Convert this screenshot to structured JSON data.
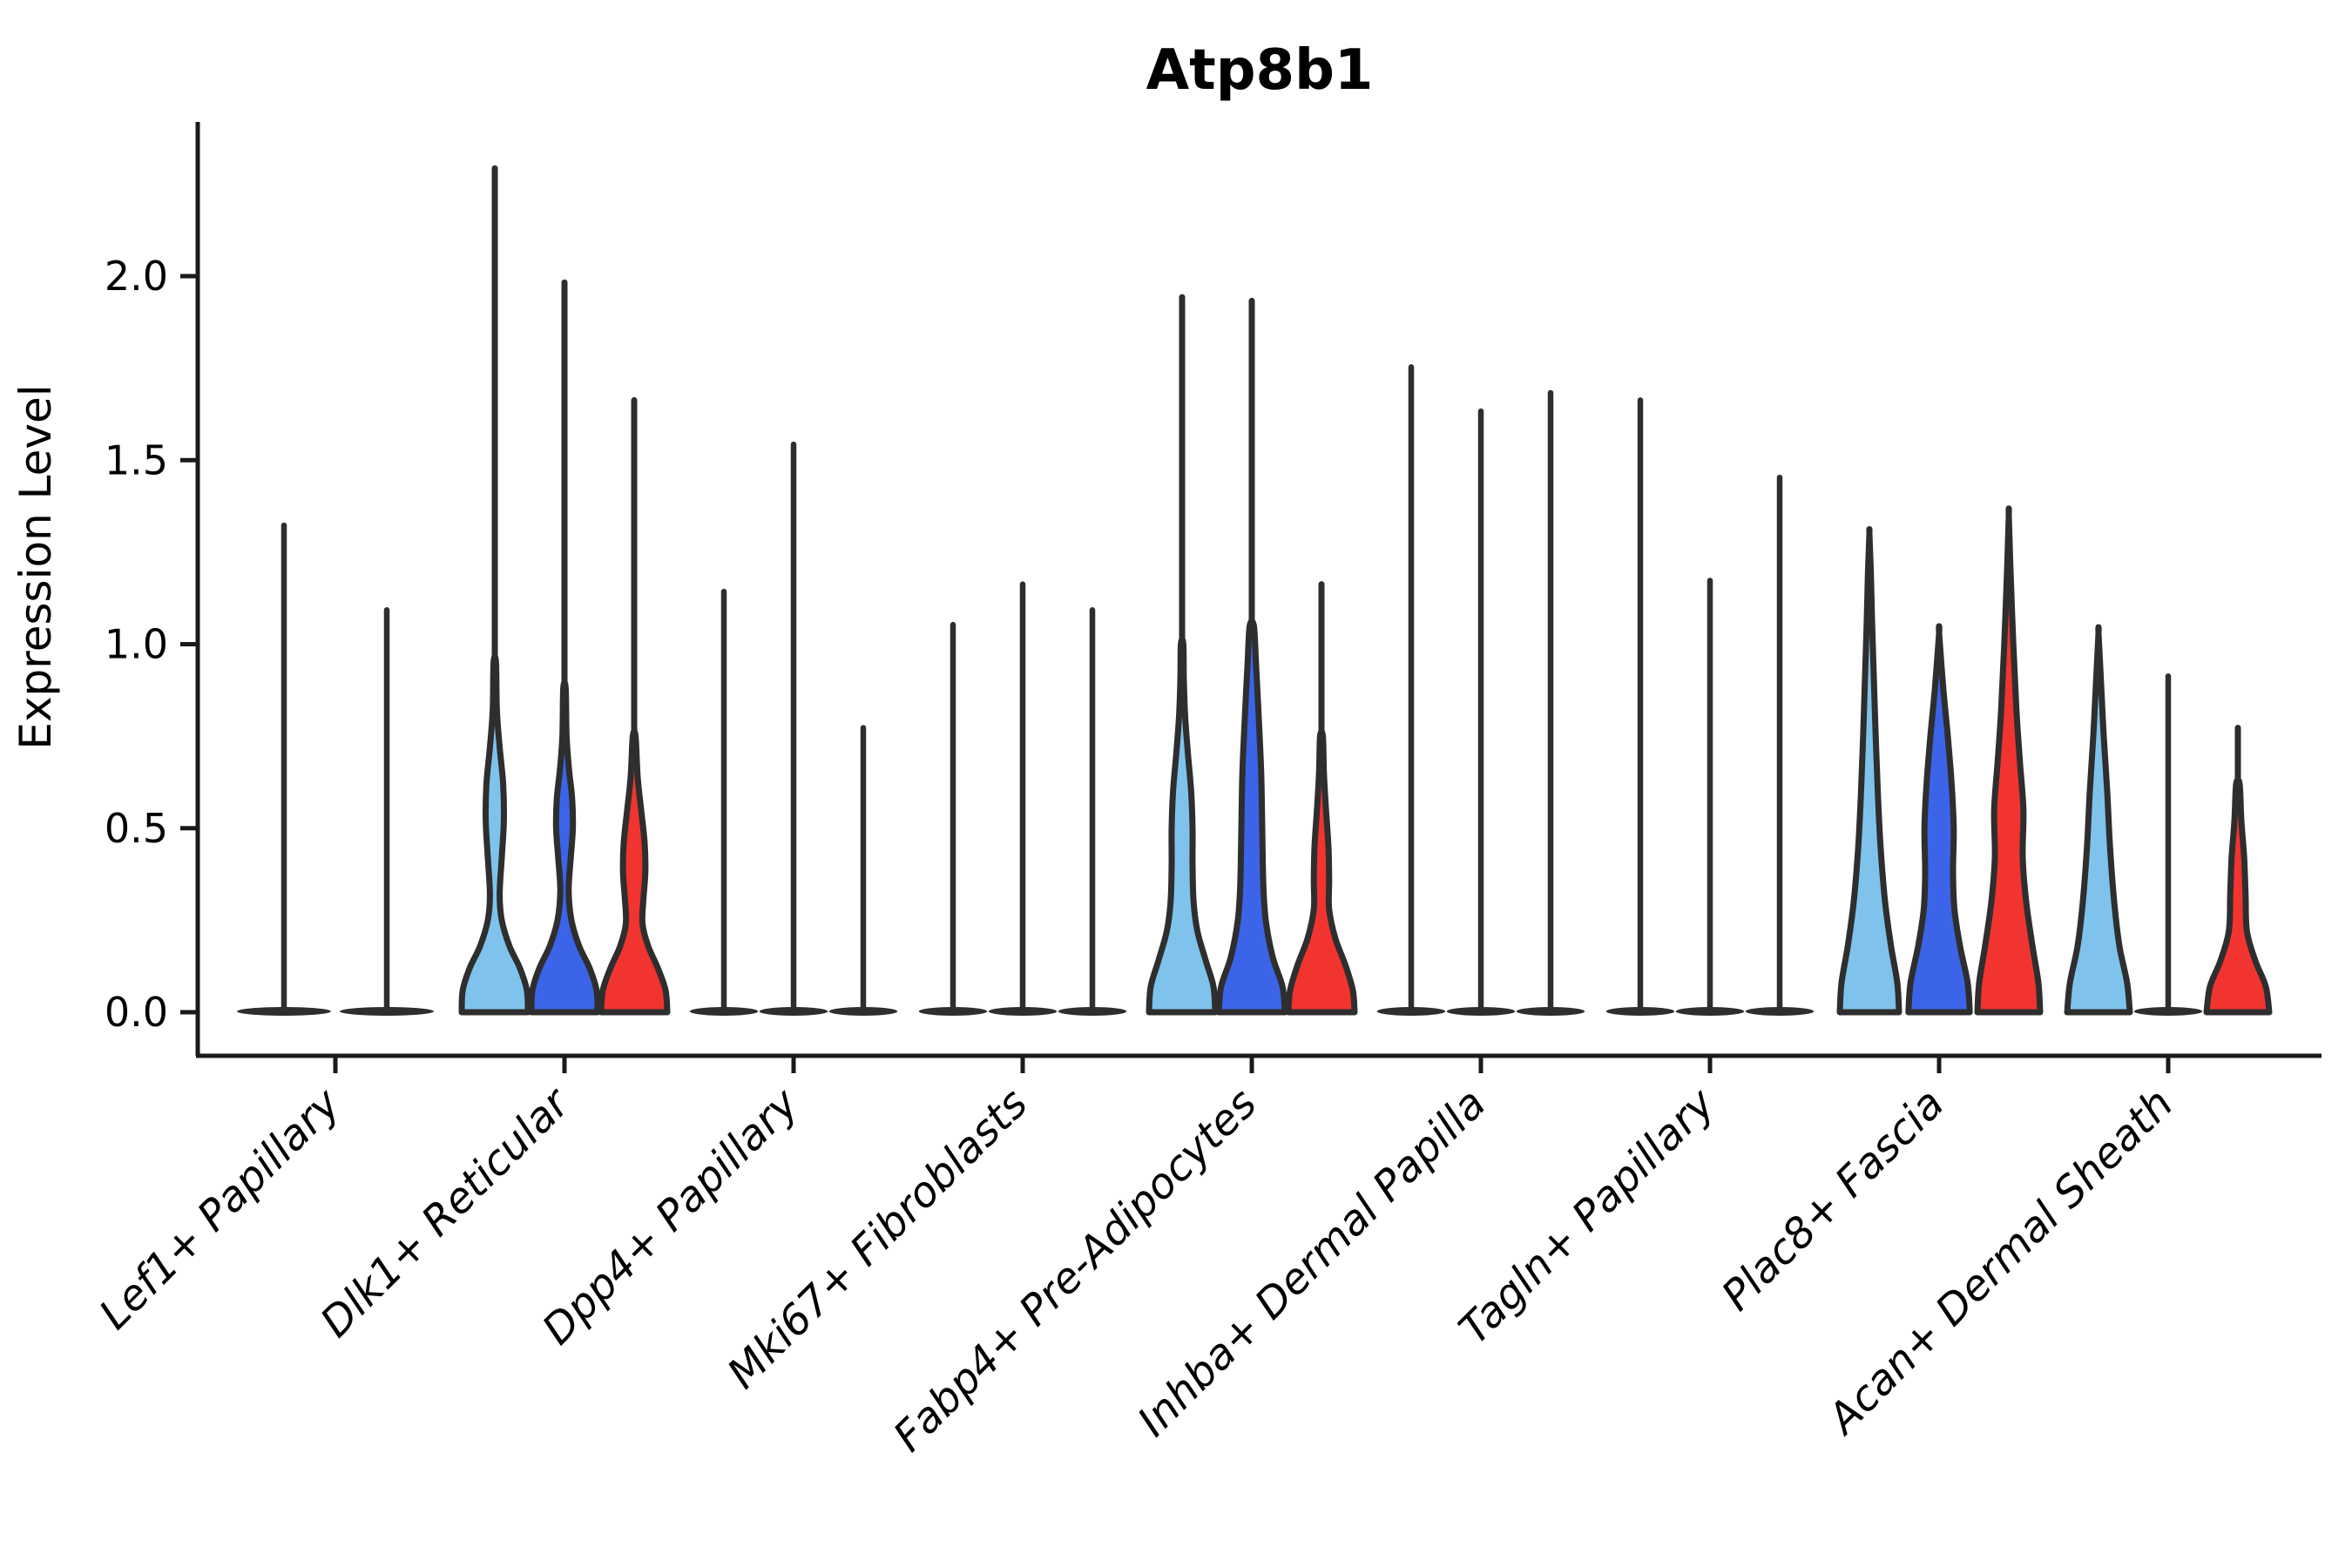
{
  "page": {
    "background": "#ffffff"
  },
  "chart_data": {
    "type": "violin",
    "title": "Atp8b1",
    "ylabel": "Expression Level",
    "xlabel": "",
    "grid": false,
    "legend": "none",
    "ylim": [
      -0.06,
      2.42
    ],
    "ytick_labels": [
      "0.0",
      "0.5",
      "1.0",
      "1.5",
      "2.0"
    ],
    "ytick_values": [
      0.0,
      0.5,
      1.0,
      1.5,
      2.0
    ],
    "palette": {
      "light_blue": "#7FC3EC",
      "dark_blue": "#3B64E8",
      "red": "#F23430",
      "outline": "#2E2E2E",
      "axis": "#1A1A1A"
    },
    "categories": [
      "Lef1+ Papillary",
      "Dlk1+ Reticular",
      "Dpp4+ Papillary",
      "Mki67+ Fibroblasts",
      "Fabp4+ Pre-Adipocytes",
      "Inhba+ Dermal Papilla",
      "Tagln+ Papillary",
      "Plac8+ Fascia",
      "Acan+ Dermal Sheath"
    ],
    "groups": [
      {
        "label": "Lef1+ Papillary",
        "violins": [
          {
            "color": "light_blue",
            "shape": "spike",
            "max": 1.33
          },
          {
            "color": "dark_blue",
            "shape": "spike",
            "max": 1.1
          }
        ]
      },
      {
        "label": "Dlk1+ Reticular",
        "violins": [
          {
            "color": "light_blue",
            "shape": "body_spike",
            "max": 2.3,
            "profile": [
              [
                0,
                0.95
              ],
              [
                0.06,
                0.92
              ],
              [
                0.12,
                0.72
              ],
              [
                0.18,
                0.42
              ],
              [
                0.25,
                0.2
              ],
              [
                0.32,
                0.14
              ],
              [
                0.42,
                0.2
              ],
              [
                0.52,
                0.26
              ],
              [
                0.62,
                0.24
              ],
              [
                0.72,
                0.14
              ],
              [
                0.82,
                0.06
              ],
              [
                0.95,
                0.035
              ]
            ]
          },
          {
            "color": "dark_blue",
            "shape": "body_spike",
            "max": 1.99,
            "profile": [
              [
                0,
                0.95
              ],
              [
                0.06,
                0.92
              ],
              [
                0.12,
                0.72
              ],
              [
                0.18,
                0.42
              ],
              [
                0.25,
                0.2
              ],
              [
                0.33,
                0.12
              ],
              [
                0.42,
                0.18
              ],
              [
                0.5,
                0.24
              ],
              [
                0.58,
                0.22
              ],
              [
                0.66,
                0.13
              ],
              [
                0.75,
                0.06
              ],
              [
                0.88,
                0.035
              ]
            ]
          },
          {
            "color": "red",
            "shape": "body_spike",
            "max": 1.67,
            "profile": [
              [
                0,
                0.95
              ],
              [
                0.06,
                0.9
              ],
              [
                0.12,
                0.68
              ],
              [
                0.18,
                0.4
              ],
              [
                0.24,
                0.24
              ],
              [
                0.3,
                0.26
              ],
              [
                0.38,
                0.32
              ],
              [
                0.46,
                0.3
              ],
              [
                0.55,
                0.2
              ],
              [
                0.64,
                0.1
              ],
              [
                0.75,
                0.04
              ]
            ]
          }
        ]
      },
      {
        "label": "Dpp4+ Papillary",
        "violins": [
          {
            "color": "light_blue",
            "shape": "spike",
            "max": 1.15
          },
          {
            "color": "dark_blue",
            "shape": "spike",
            "max": 1.55
          },
          {
            "color": "red",
            "shape": "spike",
            "max": 0.78
          }
        ]
      },
      {
        "label": "Mki67+ Fibroblasts",
        "violins": [
          {
            "color": "light_blue",
            "shape": "spike",
            "max": 1.06
          },
          {
            "color": "dark_blue",
            "shape": "spike",
            "max": 1.17
          },
          {
            "color": "red",
            "shape": "spike",
            "max": 1.1
          }
        ]
      },
      {
        "label": "Fabp4+ Pre-Adipocytes",
        "violins": [
          {
            "color": "light_blue",
            "shape": "body_spike",
            "max": 1.95,
            "profile": [
              [
                0,
                0.95
              ],
              [
                0.07,
                0.9
              ],
              [
                0.14,
                0.68
              ],
              [
                0.22,
                0.44
              ],
              [
                0.3,
                0.33
              ],
              [
                0.4,
                0.3
              ],
              [
                0.5,
                0.3
              ],
              [
                0.6,
                0.26
              ],
              [
                0.7,
                0.17
              ],
              [
                0.8,
                0.09
              ],
              [
                0.9,
                0.05
              ],
              [
                1.0,
                0.035
              ]
            ]
          },
          {
            "color": "dark_blue",
            "shape": "body_spike",
            "max": 1.94,
            "profile": [
              [
                0,
                0.95
              ],
              [
                0.07,
                0.88
              ],
              [
                0.15,
                0.6
              ],
              [
                0.25,
                0.4
              ],
              [
                0.35,
                0.33
              ],
              [
                0.5,
                0.3
              ],
              [
                0.65,
                0.27
              ],
              [
                0.8,
                0.2
              ],
              [
                0.95,
                0.12
              ],
              [
                1.05,
                0.06
              ]
            ]
          },
          {
            "color": "red",
            "shape": "body_spike",
            "max": 1.17,
            "profile": [
              [
                0,
                0.95
              ],
              [
                0.06,
                0.9
              ],
              [
                0.13,
                0.68
              ],
              [
                0.2,
                0.4
              ],
              [
                0.28,
                0.22
              ],
              [
                0.36,
                0.22
              ],
              [
                0.45,
                0.2
              ],
              [
                0.55,
                0.13
              ],
              [
                0.65,
                0.07
              ],
              [
                0.75,
                0.04
              ]
            ]
          }
        ]
      },
      {
        "label": "Inhba+ Dermal Papilla",
        "violins": [
          {
            "color": "light_blue",
            "shape": "spike",
            "max": 1.76
          },
          {
            "color": "dark_blue",
            "shape": "spike",
            "max": 1.64
          },
          {
            "color": "red",
            "shape": "spike",
            "max": 1.69
          }
        ]
      },
      {
        "label": "Tagln+ Papillary",
        "violins": [
          {
            "color": "light_blue",
            "shape": "spike",
            "max": 1.67
          },
          {
            "color": "dark_blue",
            "shape": "spike",
            "max": 1.18
          },
          {
            "color": "red",
            "shape": "spike",
            "max": 1.46
          }
        ]
      },
      {
        "label": "Plac8+ Fascia",
        "violins": [
          {
            "color": "light_blue",
            "shape": "body",
            "max": 1.3,
            "profile": [
              [
                0,
                0.85
              ],
              [
                0.08,
                0.8
              ],
              [
                0.18,
                0.62
              ],
              [
                0.3,
                0.45
              ],
              [
                0.45,
                0.32
              ],
              [
                0.6,
                0.24
              ],
              [
                0.75,
                0.18
              ],
              [
                0.9,
                0.13
              ],
              [
                1.05,
                0.08
              ],
              [
                1.2,
                0.04
              ],
              [
                1.3,
                0
              ]
            ]
          },
          {
            "color": "dark_blue",
            "shape": "body",
            "max": 1.03,
            "profile": [
              [
                0,
                0.88
              ],
              [
                0.08,
                0.82
              ],
              [
                0.18,
                0.6
              ],
              [
                0.28,
                0.44
              ],
              [
                0.38,
                0.4
              ],
              [
                0.5,
                0.42
              ],
              [
                0.62,
                0.36
              ],
              [
                0.75,
                0.25
              ],
              [
                0.88,
                0.12
              ],
              [
                1.03,
                0
              ]
            ]
          },
          {
            "color": "red",
            "shape": "body",
            "max": 1.35,
            "profile": [
              [
                0,
                0.9
              ],
              [
                0.08,
                0.85
              ],
              [
                0.18,
                0.68
              ],
              [
                0.3,
                0.5
              ],
              [
                0.42,
                0.4
              ],
              [
                0.55,
                0.42
              ],
              [
                0.68,
                0.32
              ],
              [
                0.82,
                0.22
              ],
              [
                1.0,
                0.13
              ],
              [
                1.2,
                0.05
              ],
              [
                1.35,
                0
              ]
            ]
          }
        ]
      },
      {
        "label": "Acan+ Dermal Sheath",
        "violins": [
          {
            "color": "light_blue",
            "shape": "body",
            "max": 1.03,
            "profile": [
              [
                0,
                0.9
              ],
              [
                0.08,
                0.82
              ],
              [
                0.18,
                0.6
              ],
              [
                0.3,
                0.45
              ],
              [
                0.45,
                0.33
              ],
              [
                0.6,
                0.25
              ],
              [
                0.75,
                0.15
              ],
              [
                0.9,
                0.07
              ],
              [
                1.03,
                0
              ]
            ]
          },
          {
            "color": "dark_blue",
            "shape": "spike",
            "max": 0.92
          },
          {
            "color": "red",
            "shape": "body_spike",
            "max": 0.78,
            "profile": [
              [
                0,
                0.9
              ],
              [
                0.07,
                0.8
              ],
              [
                0.14,
                0.5
              ],
              [
                0.22,
                0.26
              ],
              [
                0.32,
                0.22
              ],
              [
                0.42,
                0.18
              ],
              [
                0.52,
                0.1
              ],
              [
                0.62,
                0.05
              ]
            ]
          }
        ]
      }
    ]
  }
}
